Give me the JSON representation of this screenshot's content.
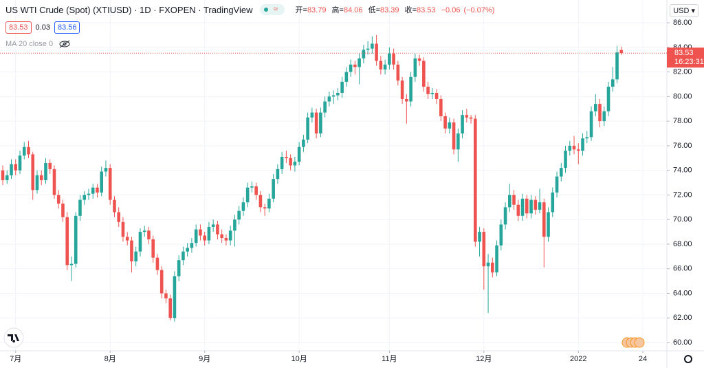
{
  "header": {
    "title": "US WTI Crude (Spot) (XTIUSD) · 1D · FXOPEN · TradingView",
    "open_label": "开",
    "high_label": "高",
    "low_label": "低",
    "close_label": "收",
    "change": "−0.06",
    "change_pct": "(−0.07%)"
  },
  "quote": {
    "bid": "83.53",
    "spread": "0.03",
    "ask": "83.56"
  },
  "indicator": "MA 20 close 0",
  "currency": "USD",
  "countdown": "16:23:31",
  "chart_data": {
    "type": "candlestick",
    "series": [
      {
        "up_color": "#26a69a",
        "down_color": "#ef5350",
        "ohlc": [
          [
            74.0,
            74.4,
            72.8,
            73.2
          ],
          [
            73.2,
            74.0,
            72.9,
            73.6
          ],
          [
            73.6,
            74.9,
            73.3,
            74.5
          ],
          [
            74.5,
            74.9,
            73.6,
            74.0
          ],
          [
            74.0,
            75.6,
            73.7,
            75.2
          ],
          [
            75.2,
            76.3,
            74.9,
            75.9
          ],
          [
            75.9,
            76.4,
            75.0,
            75.3
          ],
          [
            75.3,
            75.5,
            71.6,
            72.4
          ],
          [
            72.4,
            74.0,
            72.1,
            73.6
          ],
          [
            73.6,
            74.0,
            72.8,
            73.2
          ],
          [
            73.2,
            75.0,
            72.9,
            74.6
          ],
          [
            74.6,
            74.9,
            73.7,
            74.1
          ],
          [
            74.1,
            74.4,
            71.7,
            72.0
          ],
          [
            72.0,
            72.4,
            70.9,
            71.3
          ],
          [
            71.3,
            71.6,
            69.8,
            70.2
          ],
          [
            70.2,
            70.6,
            65.9,
            66.3
          ],
          [
            66.3,
            67.0,
            65.0,
            66.4
          ],
          [
            66.4,
            70.6,
            66.1,
            70.3
          ],
          [
            70.3,
            72.0,
            69.9,
            71.6
          ],
          [
            71.6,
            72.3,
            71.2,
            72.0
          ],
          [
            72.0,
            72.5,
            71.6,
            72.1
          ],
          [
            72.1,
            72.9,
            71.7,
            72.6
          ],
          [
            72.6,
            72.9,
            71.8,
            72.2
          ],
          [
            72.2,
            74.3,
            71.9,
            73.9
          ],
          [
            73.9,
            74.8,
            73.5,
            74.2
          ],
          [
            74.2,
            74.5,
            71.2,
            71.6
          ],
          [
            71.6,
            71.9,
            70.2,
            70.6
          ],
          [
            70.6,
            71.0,
            69.4,
            69.8
          ],
          [
            69.8,
            70.2,
            68.2,
            68.6
          ],
          [
            68.6,
            69.0,
            67.9,
            68.3
          ],
          [
            68.3,
            68.6,
            65.7,
            66.6
          ],
          [
            66.6,
            67.8,
            66.2,
            67.4
          ],
          [
            67.4,
            69.3,
            67.0,
            69.0
          ],
          [
            69.0,
            69.5,
            68.6,
            69.1
          ],
          [
            69.1,
            69.4,
            68.0,
            68.4
          ],
          [
            68.4,
            68.7,
            66.5,
            66.9
          ],
          [
            66.9,
            67.2,
            65.5,
            65.9
          ],
          [
            65.9,
            66.2,
            63.6,
            64.0
          ],
          [
            64.0,
            64.3,
            63.2,
            63.6
          ],
          [
            63.6,
            63.9,
            61.8,
            62.0
          ],
          [
            62.0,
            65.8,
            61.7,
            65.4
          ],
          [
            65.4,
            67.1,
            65.0,
            66.7
          ],
          [
            66.7,
            67.8,
            66.3,
            67.4
          ],
          [
            67.4,
            68.1,
            67.0,
            67.7
          ],
          [
            67.7,
            68.5,
            67.3,
            68.1
          ],
          [
            68.1,
            69.6,
            67.8,
            69.2
          ],
          [
            69.2,
            69.6,
            68.3,
            68.7
          ],
          [
            68.7,
            69.0,
            67.9,
            68.3
          ],
          [
            68.3,
            69.8,
            68.0,
            69.4
          ],
          [
            69.4,
            70.0,
            69.0,
            69.6
          ],
          [
            69.6,
            69.9,
            68.4,
            68.8
          ],
          [
            68.8,
            69.2,
            68.1,
            68.5
          ],
          [
            68.5,
            68.8,
            67.9,
            68.3
          ],
          [
            68.3,
            69.5,
            67.9,
            69.1
          ],
          [
            69.1,
            70.4,
            67.8,
            70.0
          ],
          [
            70.0,
            71.1,
            69.6,
            70.7
          ],
          [
            70.7,
            71.8,
            70.3,
            71.4
          ],
          [
            71.4,
            73.0,
            71.0,
            72.6
          ],
          [
            72.6,
            73.1,
            72.2,
            72.7
          ],
          [
            72.7,
            73.0,
            71.6,
            72.0
          ],
          [
            72.0,
            72.3,
            70.6,
            71.0
          ],
          [
            71.0,
            71.3,
            70.3,
            70.9
          ],
          [
            70.9,
            72.1,
            70.6,
            71.7
          ],
          [
            71.7,
            73.7,
            71.4,
            73.3
          ],
          [
            73.3,
            74.5,
            72.9,
            74.1
          ],
          [
            74.1,
            75.5,
            73.7,
            75.1
          ],
          [
            75.1,
            75.6,
            74.6,
            75.0
          ],
          [
            75.0,
            75.3,
            74.0,
            74.4
          ],
          [
            74.4,
            75.1,
            73.9,
            74.7
          ],
          [
            74.7,
            76.3,
            74.4,
            75.9
          ],
          [
            75.9,
            76.9,
            75.5,
            76.5
          ],
          [
            76.5,
            78.7,
            76.2,
            78.3
          ],
          [
            78.3,
            79.1,
            77.9,
            78.7
          ],
          [
            78.7,
            79.0,
            76.6,
            77.0
          ],
          [
            77.0,
            79.1,
            76.7,
            78.7
          ],
          [
            78.7,
            80.0,
            78.3,
            79.6
          ],
          [
            79.6,
            80.4,
            79.2,
            80.0
          ],
          [
            80.0,
            80.5,
            79.4,
            80.1
          ],
          [
            80.1,
            80.7,
            79.7,
            80.3
          ],
          [
            80.3,
            81.6,
            79.9,
            81.2
          ],
          [
            81.2,
            82.4,
            80.8,
            82.0
          ],
          [
            82.0,
            83.0,
            81.6,
            82.6
          ],
          [
            82.6,
            82.9,
            81.8,
            82.4
          ],
          [
            82.4,
            83.5,
            81.0,
            83.1
          ],
          [
            83.1,
            84.2,
            82.7,
            83.8
          ],
          [
            83.8,
            84.5,
            83.4,
            83.9
          ],
          [
            83.9,
            84.9,
            83.5,
            84.3
          ],
          [
            84.3,
            85.0,
            82.5,
            82.9
          ],
          [
            82.9,
            83.3,
            81.8,
            82.2
          ],
          [
            82.2,
            83.0,
            81.8,
            82.6
          ],
          [
            82.6,
            84.0,
            82.2,
            83.5
          ],
          [
            83.5,
            83.9,
            82.2,
            82.6
          ],
          [
            82.6,
            82.9,
            80.9,
            81.3
          ],
          [
            81.3,
            81.6,
            79.4,
            79.8
          ],
          [
            79.8,
            80.2,
            77.8,
            79.6
          ],
          [
            79.6,
            82.0,
            79.2,
            81.6
          ],
          [
            81.6,
            83.5,
            81.2,
            83.1
          ],
          [
            83.1,
            83.4,
            82.5,
            82.9
          ],
          [
            82.9,
            83.2,
            80.4,
            80.8
          ],
          [
            80.8,
            81.2,
            79.8,
            80.2
          ],
          [
            80.2,
            80.7,
            79.8,
            80.3
          ],
          [
            80.3,
            80.6,
            79.4,
            79.8
          ],
          [
            79.8,
            80.1,
            78.0,
            78.4
          ],
          [
            78.4,
            78.7,
            77.0,
            77.4
          ],
          [
            77.4,
            78.3,
            77.0,
            77.9
          ],
          [
            77.9,
            78.2,
            75.3,
            75.7
          ],
          [
            75.7,
            77.4,
            74.7,
            77.0
          ],
          [
            77.0,
            78.9,
            76.6,
            78.5
          ],
          [
            78.5,
            79.0,
            77.9,
            78.3
          ],
          [
            78.3,
            78.5,
            77.8,
            78.2
          ],
          [
            78.2,
            78.5,
            67.8,
            68.2
          ],
          [
            68.2,
            69.4,
            67.0,
            69.0
          ],
          [
            69.0,
            69.3,
            64.3,
            66.2
          ],
          [
            66.2,
            67.2,
            62.4,
            66.5
          ],
          [
            66.5,
            66.9,
            65.3,
            65.7
          ],
          [
            65.7,
            68.3,
            65.4,
            67.9
          ],
          [
            67.9,
            70.0,
            67.5,
            69.6
          ],
          [
            69.6,
            71.4,
            69.2,
            71.0
          ],
          [
            71.0,
            72.9,
            70.6,
            72.0
          ],
          [
            72.0,
            72.4,
            70.8,
            71.2
          ],
          [
            71.2,
            71.6,
            69.9,
            70.3
          ],
          [
            70.3,
            72.1,
            69.9,
            71.7
          ],
          [
            71.7,
            72.0,
            70.1,
            70.5
          ],
          [
            70.5,
            72.0,
            70.1,
            71.6
          ],
          [
            71.6,
            71.9,
            70.4,
            70.8
          ],
          [
            70.8,
            72.5,
            70.5,
            71.4
          ],
          [
            71.4,
            71.7,
            66.1,
            68.6
          ],
          [
            68.6,
            71.0,
            68.2,
            70.6
          ],
          [
            70.6,
            72.6,
            70.2,
            72.2
          ],
          [
            72.2,
            73.9,
            71.8,
            73.5
          ],
          [
            73.5,
            74.6,
            73.1,
            74.2
          ],
          [
            74.2,
            76.0,
            73.8,
            75.6
          ],
          [
            75.6,
            76.4,
            75.2,
            76.0
          ],
          [
            76.0,
            76.8,
            75.3,
            75.7
          ],
          [
            75.7,
            76.2,
            74.5,
            75.6
          ],
          [
            75.6,
            77.0,
            75.2,
            76.6
          ],
          [
            76.6,
            77.2,
            76.2,
            76.7
          ],
          [
            76.7,
            79.2,
            76.4,
            78.8
          ],
          [
            78.8,
            80.2,
            78.4,
            79.4
          ],
          [
            79.4,
            79.8,
            77.5,
            78.0
          ],
          [
            78.0,
            79.2,
            77.6,
            78.8
          ],
          [
            78.8,
            81.2,
            78.4,
            80.8
          ],
          [
            80.8,
            82.4,
            80.4,
            81.4
          ],
          [
            81.4,
            84.1,
            81.1,
            83.59
          ],
          [
            83.79,
            84.06,
            83.39,
            83.53
          ]
        ]
      }
    ],
    "xlim": [
      -0.64,
      154.6
    ],
    "xticks": [
      {
        "value": 3,
        "label": "7月"
      },
      {
        "value": 25,
        "label": "8月"
      },
      {
        "value": 47,
        "label": "9月"
      },
      {
        "value": 69,
        "label": "10月"
      },
      {
        "value": 90,
        "label": "11月"
      },
      {
        "value": 112,
        "label": "12月"
      },
      {
        "value": 134,
        "label": "2022"
      },
      {
        "value": 149,
        "label": "24"
      }
    ],
    "ylim": [
      59.33,
      87.85
    ],
    "yticks": [
      {
        "value": 60,
        "label": "60.00"
      },
      {
        "value": 62,
        "label": "62.00"
      },
      {
        "value": 64,
        "label": "64.00"
      },
      {
        "value": 66,
        "label": "66.00"
      },
      {
        "value": 68,
        "label": "68.00"
      },
      {
        "value": 70,
        "label": "70.00"
      },
      {
        "value": 72,
        "label": "72.00"
      },
      {
        "value": 74,
        "label": "74.00"
      },
      {
        "value": 76,
        "label": "76.00"
      },
      {
        "value": 78,
        "label": "78.00"
      },
      {
        "value": 80,
        "label": "80.00"
      },
      {
        "value": 82,
        "label": "82.00"
      },
      {
        "value": 84,
        "label": "84.00"
      },
      {
        "value": 86,
        "label": "86.00"
      }
    ],
    "grid": true
  }
}
